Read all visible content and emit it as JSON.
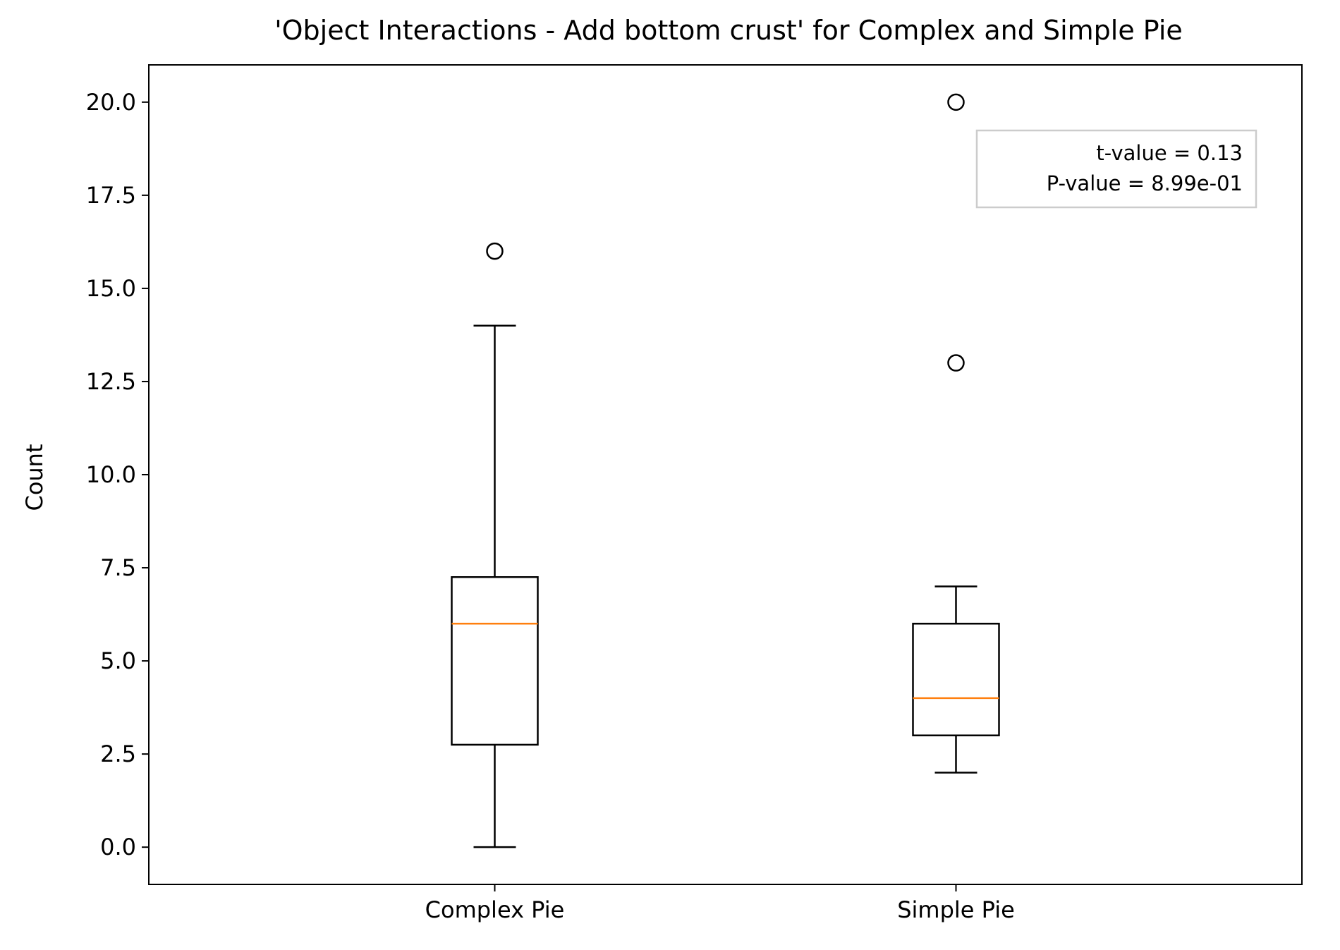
{
  "chart_data": {
    "type": "box",
    "title": "'Object Interactions - Add bottom crust' for Complex and Simple Pie",
    "xlabel": "",
    "ylabel": "Count",
    "ylim": [
      -1.0,
      21.0
    ],
    "yticks": [
      0.0,
      2.5,
      5.0,
      7.5,
      10.0,
      12.5,
      15.0,
      17.5,
      20.0
    ],
    "ytick_labels": [
      "0.0",
      "2.5",
      "5.0",
      "7.5",
      "10.0",
      "12.5",
      "15.0",
      "17.5",
      "20.0"
    ],
    "grid": false,
    "categories": [
      "Complex Pie",
      "Simple Pie"
    ],
    "boxes": [
      {
        "name": "Complex Pie",
        "whisker_low": 0.0,
        "q1": 2.75,
        "median": 6.0,
        "q3": 7.25,
        "whisker_high": 14.0,
        "outliers": [
          16.0
        ]
      },
      {
        "name": "Simple Pie",
        "whisker_low": 2.0,
        "q1": 3.0,
        "median": 4.0,
        "q3": 6.0,
        "whisker_high": 7.0,
        "outliers": [
          13.0,
          20.0
        ]
      }
    ],
    "annotation": {
      "lines": [
        "t-value = 0.13",
        "P-value = 8.99e-01"
      ],
      "placement": "top-right"
    },
    "colors": {
      "box": "#000000",
      "median": "#ff7f0e",
      "annotation_border": "#cccccc"
    }
  }
}
